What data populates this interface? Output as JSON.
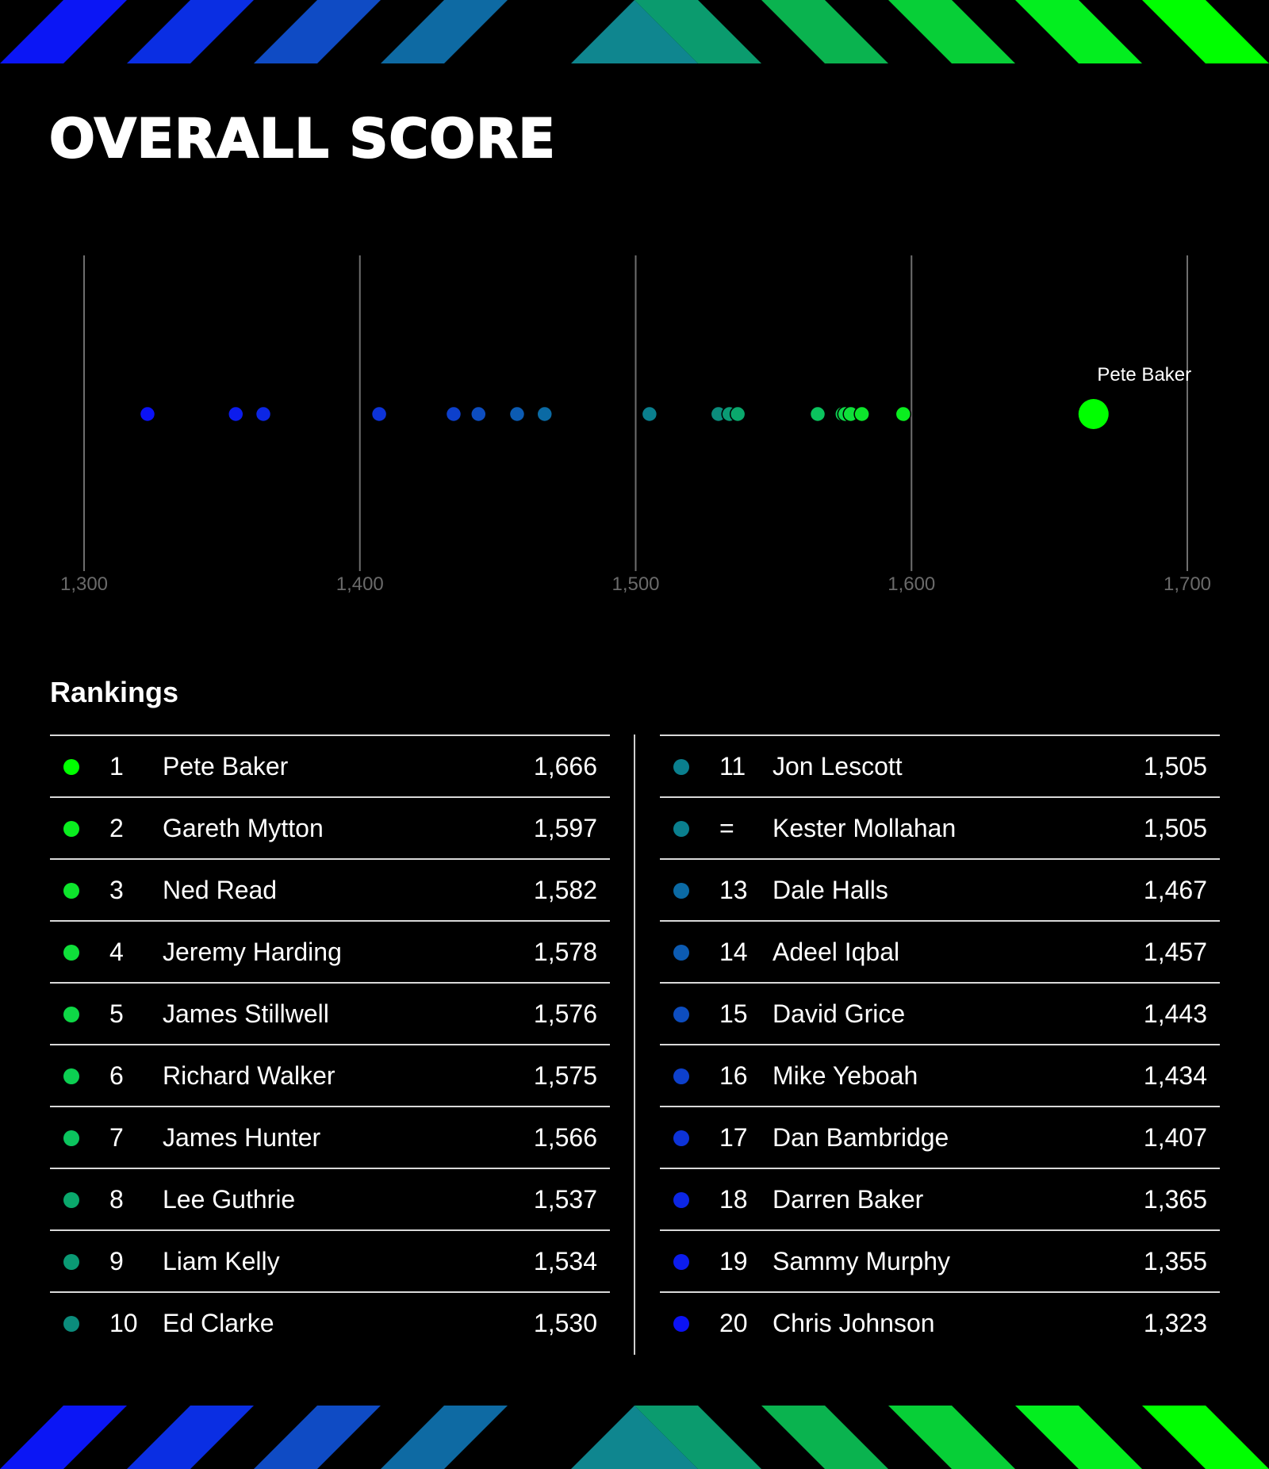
{
  "title": "OVERALL SCORE",
  "rankings_heading": "Rankings",
  "stripe_colors": [
    "#0b16f5",
    "#0a2ee3",
    "#0f4bc4",
    "#0e6aa3",
    "#0f868f",
    "#0b9b6e",
    "#0ab34f",
    "#07cf37",
    "#03ee1f",
    "#00ff00"
  ],
  "chart_data": {
    "type": "scatter",
    "xlim": [
      1300,
      1700
    ],
    "xticks": [
      1300,
      1400,
      1500,
      1600,
      1700
    ],
    "xtick_labels": [
      "1,300",
      "1,400",
      "1,500",
      "1,600",
      "1,700"
    ],
    "grid": true,
    "highlight_label": "Pete Baker",
    "points": [
      {
        "name": "Pete Baker",
        "value": 1666,
        "color": "#00ff00",
        "highlight": true
      },
      {
        "name": "Gareth Mytton",
        "value": 1597,
        "color": "#0aee1f"
      },
      {
        "name": "Ned Read",
        "value": 1582,
        "color": "#0de52c"
      },
      {
        "name": "Jeremy Harding",
        "value": 1578,
        "color": "#0fe03a"
      },
      {
        "name": "James Stillwell",
        "value": 1576,
        "color": "#0ed846"
      },
      {
        "name": "Richard Walker",
        "value": 1575,
        "color": "#0ccf52"
      },
      {
        "name": "James Hunter",
        "value": 1566,
        "color": "#0bc45e"
      },
      {
        "name": "Lee Guthrie",
        "value": 1537,
        "color": "#0aa86c"
      },
      {
        "name": "Liam Kelly",
        "value": 1534,
        "color": "#0a9a74"
      },
      {
        "name": "Ed Clarke",
        "value": 1530,
        "color": "#0b8c7c"
      },
      {
        "name": "Jon Lescott",
        "value": 1505,
        "color": "#0a7f8e"
      },
      {
        "name": "Kester Mollahan",
        "value": 1505,
        "color": "#0a7f8e"
      },
      {
        "name": "Dale Halls",
        "value": 1467,
        "color": "#0b6aa4"
      },
      {
        "name": "Adeel Iqbal",
        "value": 1457,
        "color": "#0c5bb2"
      },
      {
        "name": "David Grice",
        "value": 1443,
        "color": "#0d4dbf"
      },
      {
        "name": "Mike Yeboah",
        "value": 1434,
        "color": "#0d40cc"
      },
      {
        "name": "Dan Bambridge",
        "value": 1407,
        "color": "#0d33d8"
      },
      {
        "name": "Darren Baker",
        "value": 1365,
        "color": "#0c26e4"
      },
      {
        "name": "Sammy Murphy",
        "value": 1355,
        "color": "#0c1ced"
      },
      {
        "name": "Chris Johnson",
        "value": 1323,
        "color": "#0b12f5"
      }
    ]
  },
  "rankings_left": [
    {
      "rank": "1",
      "name": "Pete Baker",
      "score": "1,666",
      "color": "#00ff00"
    },
    {
      "rank": "2",
      "name": "Gareth Mytton",
      "score": "1,597",
      "color": "#0aee1f"
    },
    {
      "rank": "3",
      "name": "Ned Read",
      "score": "1,582",
      "color": "#0de52c"
    },
    {
      "rank": "4",
      "name": "Jeremy Harding",
      "score": "1,578",
      "color": "#0fe03a"
    },
    {
      "rank": "5",
      "name": "James Stillwell",
      "score": "1,576",
      "color": "#0ed846"
    },
    {
      "rank": "6",
      "name": "Richard Walker",
      "score": "1,575",
      "color": "#0ccf52"
    },
    {
      "rank": "7",
      "name": "James Hunter",
      "score": "1,566",
      "color": "#0bc45e"
    },
    {
      "rank": "8",
      "name": "Lee Guthrie",
      "score": "1,537",
      "color": "#0aa86c"
    },
    {
      "rank": "9",
      "name": "Liam Kelly",
      "score": "1,534",
      "color": "#0a9a74"
    },
    {
      "rank": "10",
      "name": "Ed Clarke",
      "score": "1,530",
      "color": "#0b8c7c"
    }
  ],
  "rankings_right": [
    {
      "rank": "11",
      "name": "Jon Lescott",
      "score": "1,505",
      "color": "#0a7f8e"
    },
    {
      "rank": "=",
      "name": "Kester Mollahan",
      "score": "1,505",
      "color": "#0a7f8e"
    },
    {
      "rank": "13",
      "name": "Dale Halls",
      "score": "1,467",
      "color": "#0b6aa4"
    },
    {
      "rank": "14",
      "name": "Adeel Iqbal",
      "score": "1,457",
      "color": "#0c5bb2"
    },
    {
      "rank": "15",
      "name": "David Grice",
      "score": "1,443",
      "color": "#0d4dbf"
    },
    {
      "rank": "16",
      "name": "Mike Yeboah",
      "score": "1,434",
      "color": "#0d40cc"
    },
    {
      "rank": "17",
      "name": "Dan Bambridge",
      "score": "1,407",
      "color": "#0d33d8"
    },
    {
      "rank": "18",
      "name": "Darren Baker",
      "score": "1,365",
      "color": "#0c26e4"
    },
    {
      "rank": "19",
      "name": "Sammy Murphy",
      "score": "1,355",
      "color": "#0c1ced"
    },
    {
      "rank": "20",
      "name": "Chris Johnson",
      "score": "1,323",
      "color": "#0b12f5"
    }
  ]
}
